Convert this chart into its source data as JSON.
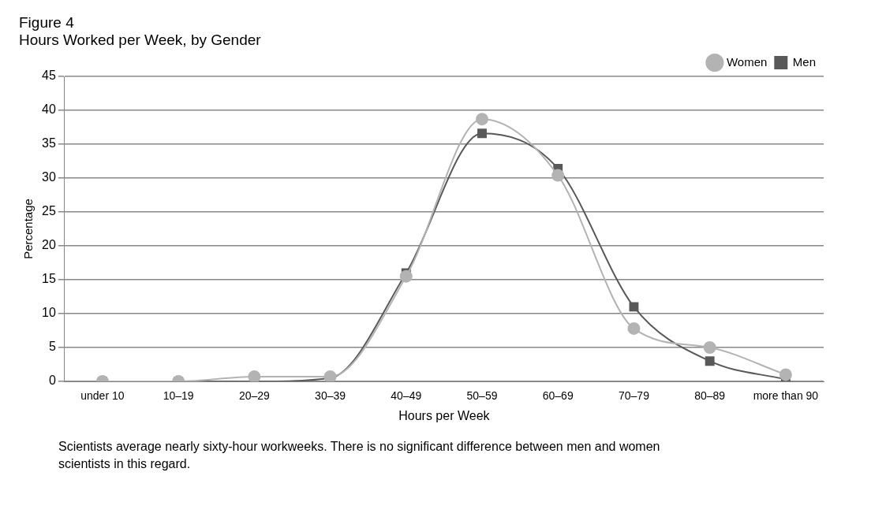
{
  "chart_data": {
    "type": "line",
    "title": "Figure 4",
    "subtitle": "Hours Worked per Week, by Gender",
    "xlabel": "Hours per Week",
    "ylabel": "Percentage",
    "categories": [
      "under 10",
      "10–19",
      "20–29",
      "30–39",
      "40–49",
      "50–59",
      "60–69",
      "70–79",
      "80–89",
      "more than 90"
    ],
    "series": [
      {
        "name": "Men",
        "color": "#595959",
        "marker": "square",
        "values": [
          0,
          0,
          0,
          0.5,
          16,
          36.6,
          31.4,
          11,
          3,
          0.3
        ]
      },
      {
        "name": "Women",
        "color": "#b3b3b3",
        "marker": "circle",
        "values": [
          0,
          0,
          0.7,
          0.7,
          15.5,
          38.7,
          30.4,
          7.8,
          5,
          1
        ]
      }
    ],
    "ylim": [
      0,
      45
    ],
    "yticks": [
      0,
      5,
      10,
      15,
      20,
      25,
      30,
      35,
      40,
      45
    ],
    "grid": "y",
    "legend": "top right",
    "annotations": [
      "Scientists average nearly sixty-hour workweeks. There is no significant difference between men and women scientists in this regard."
    ]
  }
}
